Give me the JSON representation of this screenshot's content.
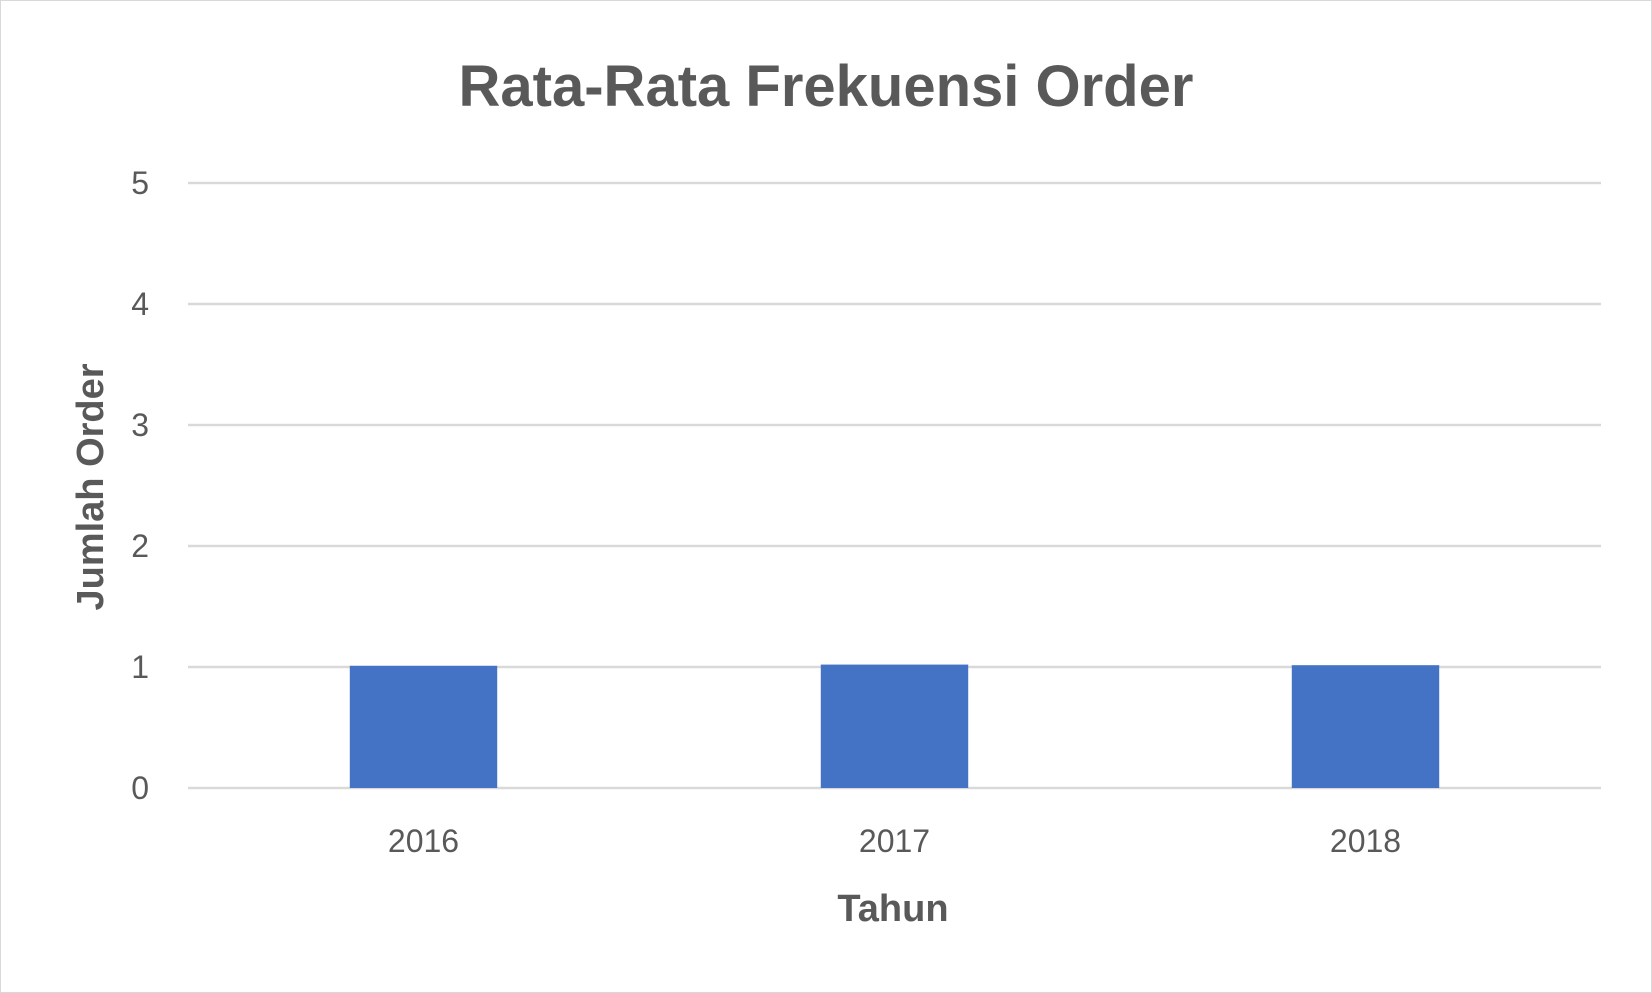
{
  "chart_data": {
    "type": "bar",
    "title": "Rata-Rata Frekuensi Order",
    "xlabel": "Tahun",
    "ylabel": "Jumlah Order",
    "categories": [
      "2016",
      "2017",
      "2018"
    ],
    "values": [
      1.01,
      1.02,
      1.015
    ],
    "ylim": [
      0,
      5
    ],
    "yticks": [
      "0",
      "1",
      "2",
      "3",
      "4",
      "5"
    ],
    "grid": true,
    "legend": "none",
    "bar_color": "#4472C4"
  }
}
